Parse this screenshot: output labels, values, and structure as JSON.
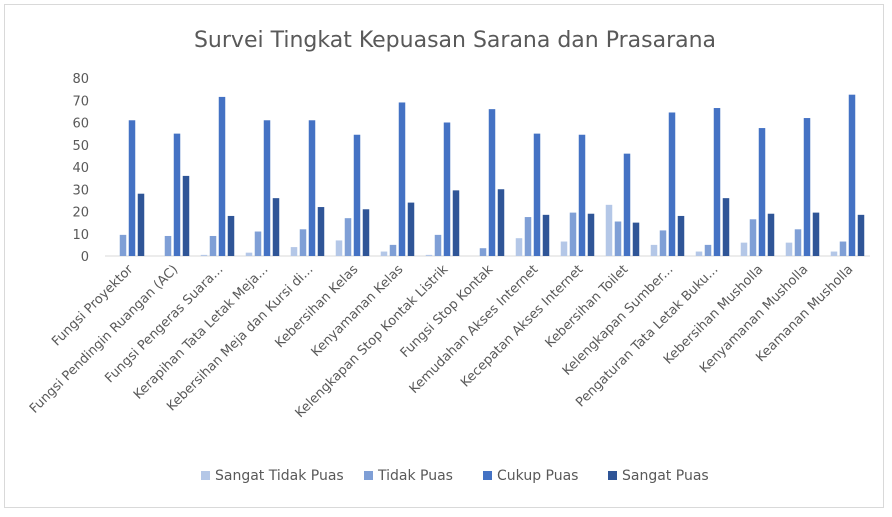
{
  "chart_data": {
    "type": "bar",
    "title": "Survei Tingkat Kepuasan Sarana dan Prasarana",
    "xlabel": "",
    "ylabel": "",
    "ylim": [
      0,
      80
    ],
    "yticks": [
      0,
      10,
      20,
      30,
      40,
      50,
      60,
      70,
      80
    ],
    "grid": false,
    "legend_position": "bottom",
    "categories": [
      "Fungsi Proyektor",
      "Fungsi Pendingin Ruangan (AC)",
      "Fungsi Pengeras Suara...",
      "Kerapihan Tata Letak Meja...",
      "Kebersihan Meja dan Kursi di...",
      "Kebersihan Kelas",
      "Kenyamanan Kelas",
      "Kelengkapan Stop Kontak Listrik",
      "Fungsi Stop Kontak",
      "Kemudahan Akses Internet",
      "Kecepatan Akses Internet",
      "Kebersihan Toilet",
      "Kelengkapan Sumber...",
      "Pengaturan Tata Letak Buku...",
      "Kebersihan Musholla",
      "Kenyamanan Musholla",
      "Keamanan Musholla"
    ],
    "series": [
      {
        "name": "Sangat Tidak Puas",
        "color": "#b4c7e7",
        "values": [
          0,
          0,
          0.5,
          1.5,
          4,
          7,
          2,
          0.5,
          0,
          8,
          6.5,
          23,
          5,
          2,
          6,
          6,
          2
        ]
      },
      {
        "name": "Tidak Puas",
        "color": "#7f9fd6",
        "values": [
          9.5,
          9,
          9,
          11,
          12,
          17,
          5,
          9.5,
          3.5,
          17.5,
          19.5,
          15.5,
          11.5,
          5,
          16.5,
          12,
          6.5
        ]
      },
      {
        "name": "Cukup Puas",
        "color": "#4472c4",
        "values": [
          61,
          55,
          71.5,
          61,
          61,
          54.5,
          69,
          60,
          66,
          55,
          54.5,
          46,
          64.5,
          66.5,
          57.5,
          62,
          72.5
        ]
      },
      {
        "name": "Sangat Puas",
        "color": "#2f5597",
        "values": [
          28,
          36,
          18,
          26,
          22,
          21,
          24,
          29.5,
          30,
          18.5,
          19,
          15,
          18,
          26,
          19,
          19.5,
          18.5
        ]
      }
    ]
  }
}
